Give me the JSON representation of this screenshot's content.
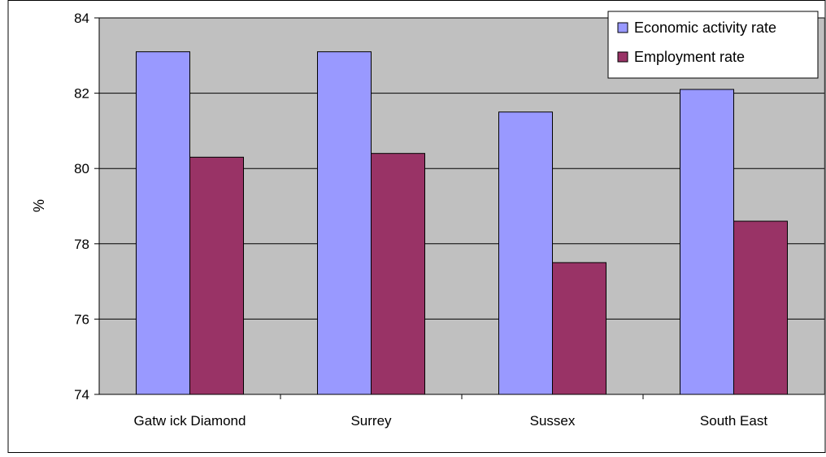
{
  "chart_data": {
    "type": "bar",
    "categories": [
      "Gatw ick Diamond",
      "Surrey",
      "Sussex",
      "South East"
    ],
    "series": [
      {
        "name": "Economic activity rate",
        "values": [
          83.1,
          83.1,
          81.5,
          82.1
        ],
        "color": "#9999ff"
      },
      {
        "name": "Employment rate",
        "values": [
          80.3,
          80.4,
          77.5,
          78.6
        ],
        "color": "#993366"
      }
    ],
    "ylabel": "%",
    "ylim": [
      74,
      84
    ],
    "yticks": [
      74,
      76,
      78,
      80,
      82,
      84
    ],
    "grid": true,
    "plot_background": "#c0c0c0",
    "legend_position": "top-right"
  }
}
